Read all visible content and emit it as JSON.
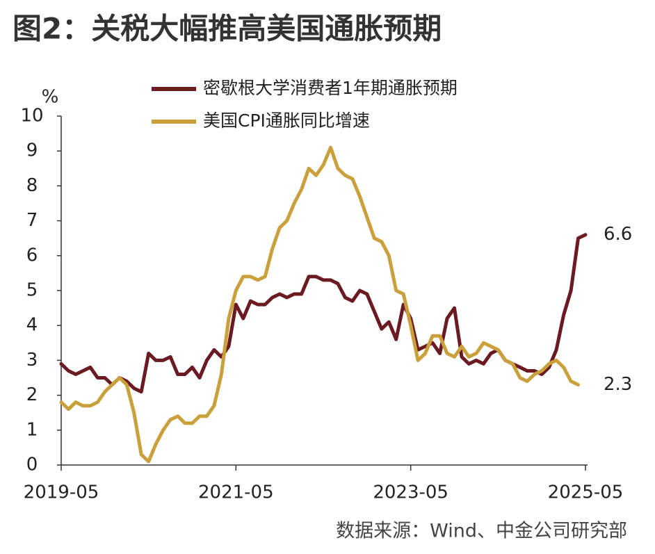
{
  "chart_data": {
    "type": "line",
    "title": "图2：关税大幅推高美国通胀预期",
    "y_label": "%",
    "source": "数据来源：Wind、中金公司研究部",
    "x": [
      "2019-05",
      "2019-06",
      "2019-07",
      "2019-08",
      "2019-09",
      "2019-10",
      "2019-11",
      "2019-12",
      "2020-01",
      "2020-02",
      "2020-03",
      "2020-04",
      "2020-05",
      "2020-06",
      "2020-07",
      "2020-08",
      "2020-09",
      "2020-10",
      "2020-11",
      "2020-12",
      "2021-01",
      "2021-02",
      "2021-03",
      "2021-04",
      "2021-05",
      "2021-06",
      "2021-07",
      "2021-08",
      "2021-09",
      "2021-10",
      "2021-11",
      "2021-12",
      "2022-01",
      "2022-02",
      "2022-03",
      "2022-04",
      "2022-05",
      "2022-06",
      "2022-07",
      "2022-08",
      "2022-09",
      "2022-10",
      "2022-11",
      "2022-12",
      "2023-01",
      "2023-02",
      "2023-03",
      "2023-04",
      "2023-05",
      "2023-06",
      "2023-07",
      "2023-08",
      "2023-09",
      "2023-10",
      "2023-11",
      "2023-12",
      "2024-01",
      "2024-02",
      "2024-03",
      "2024-04",
      "2024-05",
      "2024-06",
      "2024-07",
      "2024-08",
      "2024-09",
      "2024-10",
      "2024-11",
      "2024-12",
      "2025-01",
      "2025-02",
      "2025-03",
      "2025-04",
      "2025-05"
    ],
    "series": [
      {
        "name": "密歇根大学消费者1年期通胀预期",
        "color": "#6b1a22",
        "values": [
          2.9,
          2.7,
          2.6,
          2.7,
          2.8,
          2.5,
          2.5,
          2.3,
          2.5,
          2.4,
          2.2,
          2.1,
          3.2,
          3.0,
          3.0,
          3.1,
          2.6,
          2.6,
          2.8,
          2.5,
          3.0,
          3.3,
          3.1,
          3.4,
          4.6,
          4.2,
          4.7,
          4.6,
          4.6,
          4.8,
          4.9,
          4.8,
          4.9,
          4.9,
          5.4,
          5.4,
          5.3,
          5.3,
          5.2,
          4.8,
          4.7,
          5.0,
          4.9,
          4.4,
          3.9,
          4.1,
          3.6,
          4.6,
          4.2,
          3.3,
          3.4,
          3.5,
          3.2,
          4.2,
          4.5,
          3.1,
          2.9,
          3.0,
          2.9,
          3.2,
          3.3,
          3.0,
          2.9,
          2.8,
          2.7,
          2.7,
          2.6,
          2.8,
          3.3,
          4.3,
          5.0,
          6.5,
          6.6
        ]
      },
      {
        "name": "美国CPI通胀同比增速",
        "color": "#c9a03c",
        "values": [
          1.8,
          1.6,
          1.8,
          1.7,
          1.7,
          1.8,
          2.1,
          2.3,
          2.5,
          2.3,
          1.5,
          0.3,
          0.1,
          0.6,
          1.0,
          1.3,
          1.4,
          1.2,
          1.2,
          1.4,
          1.4,
          1.7,
          2.6,
          4.2,
          5.0,
          5.4,
          5.4,
          5.3,
          5.4,
          6.2,
          6.8,
          7.0,
          7.5,
          7.9,
          8.5,
          8.3,
          8.6,
          9.1,
          8.5,
          8.3,
          8.2,
          7.7,
          7.1,
          6.5,
          6.4,
          6.0,
          5.0,
          4.9,
          4.0,
          3.0,
          3.2,
          3.7,
          3.7,
          3.2,
          3.1,
          3.4,
          3.1,
          3.2,
          3.5,
          3.4,
          3.3,
          3.0,
          2.9,
          2.5,
          2.4,
          2.6,
          2.7,
          2.9,
          3.0,
          2.8,
          2.4,
          2.3,
          null
        ]
      }
    ],
    "xlim": [
      "2019-05",
      "2025-05"
    ],
    "xticks": [
      "2019-05",
      "2021-05",
      "2023-05",
      "2025-05"
    ],
    "ylim": [
      0,
      10
    ],
    "yticks": [
      0,
      1,
      2,
      3,
      4,
      5,
      6,
      7,
      8,
      9,
      10
    ],
    "grid": false
  }
}
